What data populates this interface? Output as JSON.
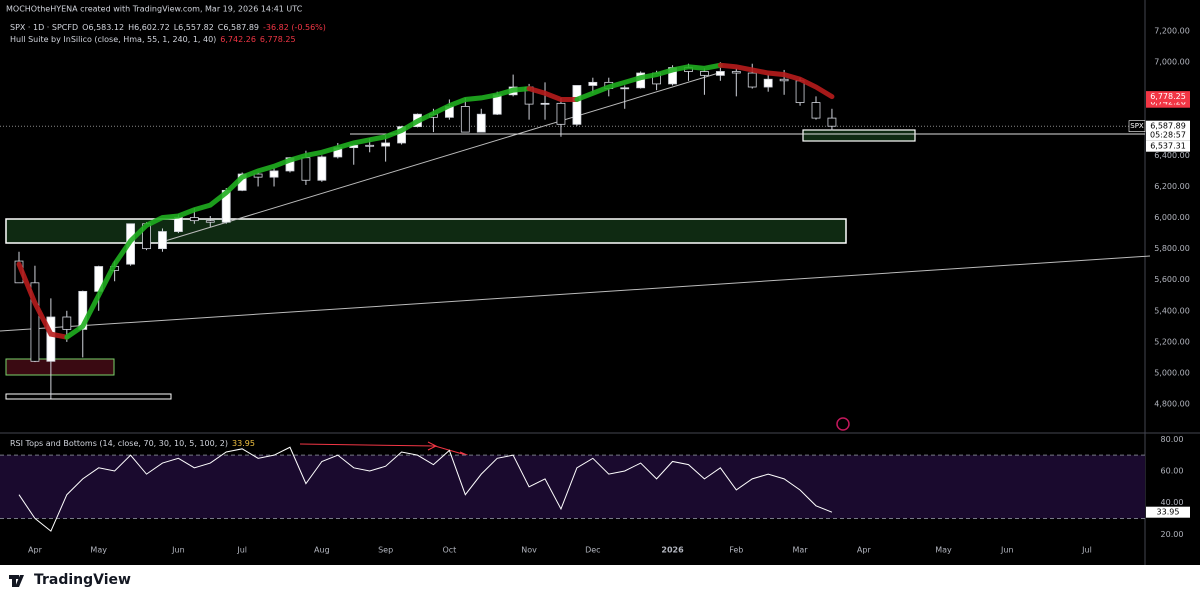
{
  "header": {
    "credit": "MOCHOtheHYENA created with TradingView.com, Mar 19, 2026 14:41 UTC",
    "symbol": "SPX · 1D · SPCFD",
    "ohlc": [
      "O6,583.12",
      "H6,602.72",
      "L6,557.82",
      "C6,587.89"
    ],
    "change": "-36.82 (-0.56%)",
    "last_tag": "SPX",
    "countdown": "05:28:57"
  },
  "footer": {
    "brand": "TradingView"
  },
  "chart_data": [
    {
      "type": "candlestick",
      "categories": [
        null,
        "Apr",
        null,
        null,
        null,
        "May",
        null,
        null,
        null,
        null,
        "Jun",
        null,
        null,
        null,
        "Jul",
        null,
        null,
        null,
        null,
        "Aug",
        null,
        null,
        null,
        "Sep",
        null,
        null,
        null,
        "Oct",
        null,
        null,
        null,
        null,
        "Nov",
        null,
        null,
        null,
        "Dec",
        null,
        null,
        null,
        null,
        "2026",
        null,
        null,
        null,
        "Feb",
        null,
        null,
        null,
        "Mar",
        null,
        null,
        null,
        "Apr",
        null,
        null,
        null,
        null,
        "May",
        null,
        null,
        null,
        "Jun",
        null,
        null,
        null,
        null,
        "Jul",
        null
      ],
      "open": [
        5720,
        5580,
        5075,
        5360,
        5280,
        5525,
        5685,
        5700,
        5960,
        5800,
        5910,
        6000,
        5980,
        5970,
        6175,
        6280,
        6260,
        6300,
        6385,
        6240,
        6390,
        6450,
        6465,
        6460,
        6480,
        6585,
        6665,
        6645,
        6715,
        6550,
        6665,
        6790,
        6840,
        6730,
        6735,
        6600,
        6850,
        6870,
        6830,
        6835,
        6930,
        6860,
        6965,
        6940,
        6915,
        6940,
        6930,
        6840,
        6890,
        6880,
        6740,
        6640,
        null,
        null,
        null,
        null,
        null,
        null,
        null,
        null,
        null,
        null,
        null,
        null,
        null,
        null,
        null,
        null,
        null
      ],
      "high": [
        5780,
        5690,
        5480,
        5400,
        5530,
        5690,
        5720,
        5960,
        5970,
        5930,
        6020,
        6060,
        6010,
        6190,
        6290,
        6290,
        6320,
        6390,
        6430,
        6400,
        6480,
        6470,
        6510,
        6530,
        6590,
        6670,
        6700,
        6760,
        6770,
        6700,
        6810,
        6920,
        6860,
        6870,
        6770,
        6850,
        6900,
        6900,
        6850,
        6940,
        6945,
        6980,
        6990,
        6960,
        7000,
        6960,
        6990,
        6920,
        6950,
        6900,
        6780,
        6700,
        null,
        null,
        null,
        null,
        null,
        null,
        null,
        null,
        null,
        null,
        null,
        null,
        null,
        null,
        null,
        null,
        null
      ],
      "low": [
        5590,
        5070,
        4835,
        5200,
        5100,
        5400,
        5590,
        5690,
        5790,
        5780,
        5900,
        5960,
        5940,
        5960,
        6170,
        6200,
        6200,
        6290,
        6210,
        6230,
        6380,
        6340,
        6420,
        6360,
        6470,
        6580,
        6550,
        6630,
        6550,
        6550,
        6660,
        6780,
        6630,
        6630,
        6520,
        6590,
        6800,
        6780,
        6700,
        6830,
        6820,
        6850,
        6880,
        6790,
        6880,
        6780,
        6830,
        6810,
        6790,
        6720,
        6630,
        6560,
        null,
        null,
        null,
        null,
        null,
        null,
        null,
        null,
        null,
        null,
        null,
        null,
        null,
        null,
        null,
        null,
        null
      ],
      "close": [
        5580,
        5075,
        5360,
        5280,
        5525,
        5685,
        5660,
        5960,
        5800,
        5910,
        6000,
        5980,
        5970,
        6175,
        6280,
        6260,
        6300,
        6385,
        6240,
        6390,
        6450,
        6465,
        6460,
        6480,
        6585,
        6665,
        6645,
        6715,
        6550,
        6665,
        6790,
        6840,
        6730,
        6735,
        6600,
        6850,
        6870,
        6830,
        6835,
        6930,
        6860,
        6965,
        6940,
        6915,
        6940,
        6930,
        6840,
        6890,
        6880,
        6740,
        6640,
        6587.89,
        null,
        null,
        null,
        null,
        null,
        null,
        null,
        null,
        null,
        null,
        null,
        null,
        null,
        null,
        null,
        null,
        null
      ],
      "last_label": "6,587.89",
      "up_color": "#ffffff",
      "down_color": "#000000",
      "wick_color": "#d1d4dc",
      "hull": {
        "name": "Hull Suite by InSilico (close, Hma, 55, 1, 240, 1, 40)",
        "values": [
          5700,
          5450,
          5250,
          5230,
          5300,
          5500,
          5700,
          5850,
          5950,
          6000,
          6010,
          6050,
          6080,
          6160,
          6260,
          6300,
          6330,
          6370,
          6400,
          6420,
          6450,
          6480,
          6500,
          6520,
          6560,
          6620,
          6670,
          6720,
          6760,
          6770,
          6790,
          6820,
          6830,
          6800,
          6760,
          6760,
          6800,
          6840,
          6870,
          6900,
          6920,
          6950,
          6970,
          6960,
          6980,
          6970,
          6950,
          6930,
          6920,
          6890,
          6840,
          6778.25,
          null,
          null,
          null,
          null,
          null,
          null,
          null,
          null,
          null,
          null,
          null,
          null,
          null,
          null,
          null,
          null,
          null
        ],
        "colors": [
          "#b71c1c",
          "#b71c1c",
          "#b71c1c",
          "#1fae1f",
          "#1fae1f",
          "#1fae1f",
          "#1fae1f",
          "#1fae1f",
          "#1fae1f",
          "#1fae1f",
          "#1fae1f",
          "#1fae1f",
          "#1fae1f",
          "#1fae1f",
          "#1fae1f",
          "#1fae1f",
          "#1fae1f",
          "#1fae1f",
          "#1fae1f",
          "#1fae1f",
          "#1fae1f",
          "#1fae1f",
          "#1fae1f",
          "#1fae1f",
          "#1fae1f",
          "#1fae1f",
          "#1fae1f",
          "#1fae1f",
          "#1fae1f",
          "#1fae1f",
          "#1fae1f",
          "#1fae1f",
          "#b71c1c",
          "#b71c1c",
          "#b71c1c",
          "#1fae1f",
          "#1fae1f",
          "#1fae1f",
          "#1fae1f",
          "#1fae1f",
          "#1fae1f",
          "#1fae1f",
          "#1fae1f",
          "#1fae1f",
          "#b71c1c",
          "#b71c1c",
          "#b71c1c",
          "#b71c1c",
          "#b71c1c",
          "#b71c1c",
          "#b71c1c",
          "#b71c1c",
          null,
          null,
          null,
          null,
          null,
          null,
          null,
          null,
          null,
          null,
          null,
          null,
          null,
          null,
          null,
          null,
          null
        ],
        "bands": [
          {
            "value": 6742.26,
            "label": "6,742.26"
          },
          {
            "value": 6778.25,
            "label": "6,778.25"
          }
        ],
        "band_color": "#f23645"
      },
      "hline": {
        "value": 6537.31,
        "label": "6,537.31"
      },
      "ylim": [
        4620,
        7400
      ],
      "yticks": [
        {
          "value": 4800,
          "label": "4,800.00"
        },
        {
          "value": 5000,
          "label": "5,000.00"
        },
        {
          "value": 5200,
          "label": "5,200.00"
        },
        {
          "value": 5400,
          "label": "5,400.00"
        },
        {
          "value": 5600,
          "label": "5,600.00"
        },
        {
          "value": 5800,
          "label": "5,800.00"
        },
        {
          "value": 6000,
          "label": "6,000.00"
        },
        {
          "value": 6200,
          "label": "6,200.00"
        },
        {
          "value": 6400,
          "label": "6,400.00"
        },
        {
          "value": 7000,
          "label": "7,000.00"
        },
        {
          "value": 7200,
          "label": "7,200.00"
        }
      ],
      "grid": false
    },
    {
      "type": "line",
      "title": "RSI Tops and Bottoms (14, close, 70, 30, 10, 5, 100, 2)",
      "values": [
        45,
        30,
        22,
        45,
        55,
        62,
        60,
        70,
        58,
        65,
        68,
        62,
        65,
        72,
        74,
        68,
        70,
        75,
        52,
        66,
        70,
        62,
        60,
        63,
        72,
        70,
        64,
        73,
        45,
        58,
        68,
        70,
        50,
        55,
        36,
        62,
        68,
        58,
        60,
        65,
        55,
        66,
        64,
        55,
        62,
        48,
        55,
        58,
        55,
        48,
        38,
        33.95,
        null,
        null,
        null,
        null,
        null,
        null,
        null,
        null,
        null,
        null,
        null,
        null,
        null,
        null,
        null,
        null,
        null
      ],
      "last_label": "33.95",
      "color": "#ffffff",
      "levels": [
        30,
        70
      ],
      "level_fill": "#1a0a2e",
      "ylim": [
        5,
        84
      ],
      "yticks": [
        {
          "value": 20,
          "label": "20.00"
        },
        {
          "value": 40,
          "label": "40.00"
        },
        {
          "value": 60,
          "label": "60.00"
        },
        {
          "value": 80,
          "label": "80.00"
        }
      ]
    }
  ]
}
